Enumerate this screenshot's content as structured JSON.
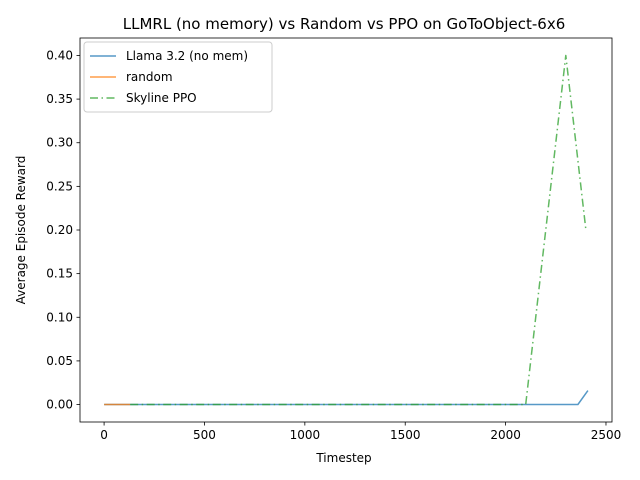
{
  "chart_data": {
    "type": "line",
    "title": "LLMRL (no memory) vs Random vs PPO on GoToObject-6x6",
    "xlabel": "Timestep",
    "ylabel": "Average Episode Reward",
    "xlim": [
      -120,
      2530
    ],
    "ylim": [
      -0.02,
      0.42
    ],
    "xticks": [
      0,
      500,
      1000,
      1500,
      2000,
      2500
    ],
    "yticks": [
      0.0,
      0.05,
      0.1,
      0.15,
      0.2,
      0.25,
      0.3,
      0.35,
      0.4
    ],
    "xtick_labels": [
      "0",
      "500",
      "1000",
      "1500",
      "2000",
      "2500"
    ],
    "ytick_labels": [
      "0.00",
      "0.05",
      "0.10",
      "0.15",
      "0.20",
      "0.25",
      "0.30",
      "0.35",
      "0.40"
    ],
    "grid": false,
    "legend_position": "top-left",
    "series": [
      {
        "name": "Llama 3.2 (no mem)",
        "color": "#1f77b4",
        "style": "solid",
        "x": [
          0,
          2360,
          2410
        ],
        "y": [
          0.0,
          0.0,
          0.016
        ]
      },
      {
        "name": "random",
        "color": "#ff7f0e",
        "style": "solid",
        "x": [
          0,
          130
        ],
        "y": [
          0.0,
          0.0
        ]
      },
      {
        "name": "Skyline PPO",
        "color": "#2ca02c",
        "style": "dashdot",
        "x": [
          130,
          2100,
          2300,
          2400
        ],
        "y": [
          0.0,
          0.0,
          0.4,
          0.2
        ]
      }
    ]
  }
}
